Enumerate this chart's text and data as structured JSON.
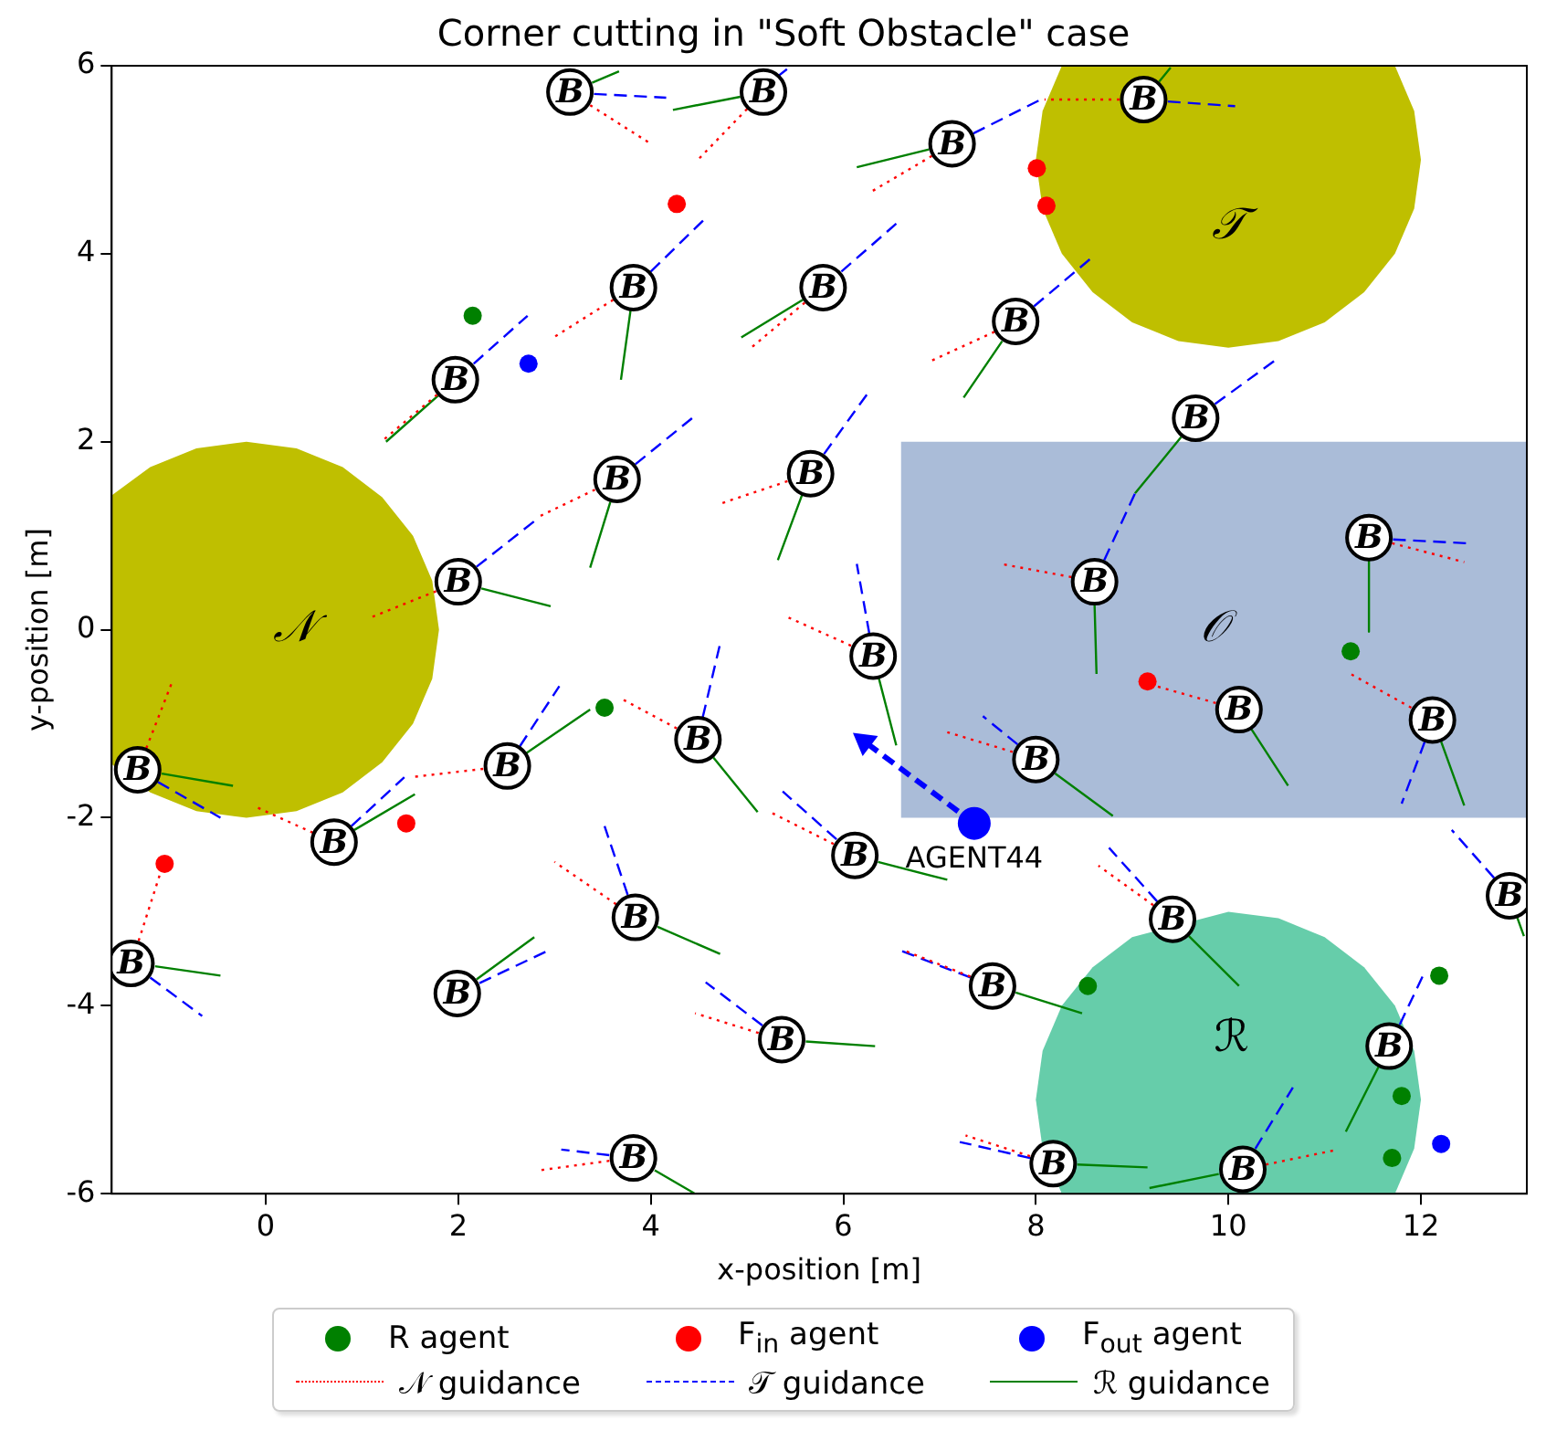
{
  "chart_data": {
    "type": "scatter",
    "title": "Corner cutting in \"Soft Obstacle\" case",
    "xlabel": "x-position [m]",
    "ylabel": "y-position [m]",
    "xlim": [
      -1.6,
      13.1
    ],
    "ylim": [
      -6,
      6
    ],
    "xticks": [
      0,
      2,
      4,
      6,
      8,
      10,
      12
    ],
    "yticks": [
      -6,
      -4,
      -2,
      0,
      2,
      4,
      6
    ],
    "grid": false,
    "legend": "bottom",
    "annotations": [
      {
        "text": "AGENT44",
        "x": 7.36,
        "y": -2.06
      }
    ],
    "series": [
      {
        "name": "𝒩",
        "type": "area",
        "color": "#bfbf00",
        "x": [
          1.8,
          1.73,
          1.53,
          1.21,
          0.8,
          0.32,
          -0.2,
          -0.72,
          -1.2,
          -1.6,
          -1.6,
          -1.2,
          -0.72,
          -0.2,
          0.32,
          0.8,
          1.21,
          1.53,
          1.73,
          1.8
        ],
        "values": [
          0,
          0.52,
          1,
          1.41,
          1.73,
          1.93,
          2,
          1.93,
          1.73,
          1.43,
          -1.43,
          -1.73,
          -1.93,
          -2,
          -1.93,
          -1.73,
          -1.41,
          -1,
          -0.52,
          0
        ]
      },
      {
        "name": "𝒯",
        "type": "area",
        "color": "#bfbf00",
        "x": [
          12,
          11.93,
          11.73,
          8.27,
          8.07,
          8,
          8.07,
          8.27,
          8.59,
          9,
          9.48,
          10,
          10.52,
          11,
          11.41,
          11.73,
          11.93,
          12
        ],
        "values": [
          5,
          5.52,
          6,
          6,
          5.52,
          5,
          4.48,
          4,
          3.59,
          3.27,
          3.07,
          3,
          3.07,
          3.27,
          3.59,
          4,
          4.48,
          5
        ]
      },
      {
        "name": "ℛ",
        "type": "area",
        "color": "#66cdaa",
        "x": [
          12,
          11.93,
          11.73,
          11.41,
          11,
          10.52,
          10,
          9,
          8.59,
          8.27,
          8.07,
          8,
          8.07,
          8.27,
          11.73,
          11.93,
          12
        ],
        "values": [
          -5,
          -4.48,
          -4,
          -3.59,
          -3.27,
          -3.07,
          -3,
          -3.27,
          -3.59,
          -4,
          -4.48,
          -5,
          -5.52,
          -6,
          -6,
          -5.52,
          -5
        ]
      },
      {
        "name": "𝒪",
        "type": "area",
        "color": "#aabcd8",
        "x": [
          6.6,
          13.1,
          13.1,
          6.6,
          6.6
        ],
        "values": [
          2,
          2,
          -2,
          -2,
          2
        ]
      },
      {
        "name": "R agent",
        "color": "#008000",
        "x": [
          2.15,
          3.52,
          11.27,
          8.54,
          12.19,
          11.8,
          11.7
        ],
        "values": [
          3.34,
          -0.83,
          -0.23,
          -3.79,
          -3.68,
          -4.96,
          -5.62
        ]
      },
      {
        "name": "F$_{in}$ agent",
        "color": "#ff0000",
        "x": [
          4.27,
          8.01,
          8.11,
          9.16,
          1.46,
          -1.05
        ],
        "values": [
          4.53,
          4.91,
          4.51,
          -0.55,
          -2.06,
          -2.49
        ]
      },
      {
        "name": "F$_{out}$ agent",
        "color": "#0000ff",
        "x": [
          2.73,
          12.21
        ],
        "values": [
          2.83,
          -5.47
        ]
      },
      {
        "name": "𝒩 guidance",
        "type": "line",
        "color": "#ff0000",
        "line_style": "dotted",
        "x": [
          3.37,
          4.0,
          null,
          5.0,
          4.49,
          null,
          6.92,
          6.29,
          null,
          8.87,
          8.09,
          null,
          3.61,
          2.96,
          null,
          5.6,
          5.02,
          null,
          7.57,
          6.89,
          null,
          1.78,
          1.2,
          null,
          3.42,
          2.81,
          null,
          5.42,
          4.72,
          null,
          11.7,
          12.45,
          null,
          1.77,
          1.09,
          null,
          8.37,
          7.64,
          null,
          6.08,
          5.43,
          null,
          9.87,
          9.18,
          null,
          11.9,
          11.27,
          null,
          -1.24,
          -0.97,
          null,
          2.26,
          1.5,
          null,
          4.27,
          3.67,
          null,
          7.76,
          7.08,
          null,
          0.49,
          -0.09,
          null,
          5.9,
          5.24,
          null,
          9.22,
          8.65,
          null,
          3.64,
          3.0,
          null,
          -1.32,
          -1.07,
          null,
          7.32,
          6.65,
          null,
          5.12,
          4.46,
          null,
          3.57,
          2.85,
          null,
          7.94,
          7.27,
          null,
          10.39,
          11.14
        ],
        "values": [
          5.58,
          5.17,
          null,
          5.54,
          5.0,
          null,
          5.04,
          4.66,
          null,
          5.64,
          5.64,
          null,
          3.51,
          3.09,
          null,
          3.48,
          2.98,
          null,
          3.17,
          2.85,
          null,
          2.5,
          2.0,
          null,
          1.49,
          1.19,
          null,
          1.58,
          1.34,
          null,
          0.92,
          0.72,
          null,
          0.41,
          0.13,
          null,
          0.56,
          0.7,
          null,
          -0.17,
          0.13,
          null,
          -0.78,
          -0.58,
          null,
          -0.83,
          -0.47,
          null,
          -1.26,
          -0.55,
          null,
          -1.48,
          -1.57,
          null,
          -1.05,
          -0.72,
          null,
          -1.3,
          -1.09,
          null,
          -2.16,
          -1.89,
          null,
          -2.28,
          -1.94,
          null,
          -2.93,
          -2.51,
          null,
          -2.92,
          -2.47,
          null,
          -3.31,
          -2.51,
          null,
          -3.69,
          -3.42,
          null,
          -4.29,
          -4.08,
          null,
          -5.65,
          -5.75,
          null,
          -5.6,
          -5.38,
          null,
          -5.69,
          -5.53
        ]
      },
      {
        "name": "𝒯 guidance",
        "type": "line",
        "color": "#0000ff",
        "line_style": "dashed",
        "x": [
          3.41,
          4.16,
          null,
          5.31,
          5.46,
          null,
          7.35,
          8.05,
          null,
          9.37,
          10.07,
          null,
          4.0,
          4.55,
          null,
          5.98,
          6.55,
          null,
          7.98,
          8.56,
          null,
          2.16,
          2.72,
          null,
          9.86,
          10.49,
          null,
          3.84,
          4.44,
          null,
          5.8,
          6.25,
          null,
          11.71,
          12.47,
          null,
          2.19,
          2.81,
          null,
          8.71,
          9.03,
          null,
          6.27,
          6.14,
          null,
          12.04,
          11.8,
          null,
          -1.12,
          -0.47,
          null,
          2.64,
          3.05,
          null,
          4.54,
          4.72,
          null,
          7.81,
          7.45,
          null,
          0.89,
          1.44,
          null,
          5.93,
          5.37,
          null,
          12.76,
          12.32,
          null,
          9.26,
          8.76,
          null,
          3.76,
          3.52,
          null,
          -1.2,
          -0.66,
          null,
          2.22,
          2.92,
          null,
          7.32,
          6.61,
          null,
          5.16,
          4.57,
          null,
          11.78,
          12.04,
          null,
          3.57,
          3.07,
          null,
          7.94,
          7.21,
          null,
          10.28,
          10.67
        ],
        "values": [
          5.7,
          5.66,
          null,
          5.88,
          6.0,
          null,
          5.28,
          5.64,
          null,
          5.62,
          5.57,
          null,
          3.81,
          4.36,
          null,
          3.81,
          4.32,
          null,
          3.44,
          3.94,
          null,
          2.83,
          3.34,
          null,
          2.4,
          2.87,
          null,
          1.76,
          2.26,
          null,
          1.87,
          2.51,
          null,
          0.96,
          0.92,
          null,
          0.67,
          1.17,
          null,
          0.74,
          1.45,
          null,
          -0.04,
          0.7,
          null,
          -1.19,
          -1.85,
          null,
          -1.62,
          -2.0,
          null,
          -1.24,
          -0.6,
          null,
          -0.93,
          -0.15,
          null,
          -1.22,
          -0.92,
          null,
          -2.09,
          -1.57,
          null,
          -2.23,
          -1.72,
          null,
          -2.64,
          -2.13,
          null,
          -2.89,
          -2.32,
          null,
          -2.82,
          -2.09,
          null,
          -3.7,
          -4.11,
          null,
          -3.76,
          -3.42,
          null,
          -3.7,
          -3.42,
          null,
          -4.21,
          -3.75,
          null,
          -4.2,
          -3.64,
          null,
          -5.59,
          -5.53,
          null,
          -5.62,
          -5.45,
          null,
          -5.52,
          -4.87
        ]
      },
      {
        "name": "ℛ guidance",
        "type": "line",
        "color": "#008000",
        "line_style": "solid",
        "x": [
          3.39,
          3.67,
          null,
          4.93,
          4.23,
          null,
          6.89,
          6.14,
          null,
          9.28,
          9.4,
          null,
          3.79,
          3.69,
          null,
          5.58,
          4.94,
          null,
          7.65,
          7.25,
          null,
          1.79,
          1.25,
          null,
          9.51,
          9.03,
          null,
          3.58,
          3.37,
          null,
          5.57,
          5.32,
          null,
          11.46,
          11.46,
          null,
          2.24,
          2.96,
          null,
          8.61,
          8.63,
          null,
          6.37,
          6.55,
          null,
          10.24,
          10.62,
          null,
          12.21,
          12.45,
          null,
          -1.08,
          -0.34,
          null,
          2.71,
          3.37,
          null,
          4.65,
          5.11,
          null,
          8.2,
          8.8,
          null,
          0.92,
          1.55,
          null,
          6.36,
          7.08,
          null,
          13.0,
          13.07,
          null,
          9.59,
          10.11,
          null,
          4.07,
          4.72,
          null,
          -1.15,
          -0.47,
          null,
          2.19,
          2.79,
          null,
          7.79,
          8.48,
          null,
          5.61,
          6.33,
          null,
          11.56,
          11.22,
          null,
          4.04,
          4.46,
          null,
          8.43,
          9.16,
          null,
          9.9,
          9.18
        ],
        "values": [
          5.82,
          5.94,
          null,
          5.67,
          5.53,
          null,
          5.11,
          4.92,
          null,
          5.83,
          5.98,
          null,
          3.4,
          2.66,
          null,
          3.51,
          3.11,
          null,
          3.07,
          2.47,
          null,
          2.49,
          2.0,
          null,
          2.05,
          1.45,
          null,
          1.36,
          0.66,
          null,
          1.43,
          0.74,
          null,
          0.73,
          -0.02,
          null,
          0.44,
          0.25,
          null,
          0.26,
          -0.47,
          null,
          -0.52,
          -1.23,
          null,
          -1.06,
          -1.66,
          null,
          -1.19,
          -1.87,
          null,
          -1.53,
          -1.66,
          null,
          -1.31,
          -0.85,
          null,
          -1.36,
          -1.94,
          null,
          -1.53,
          -1.98,
          null,
          -2.13,
          -1.75,
          null,
          -2.47,
          -2.66,
          null,
          -3.06,
          -3.26,
          null,
          -3.26,
          -3.79,
          null,
          -3.16,
          -3.45,
          null,
          -3.58,
          -3.68,
          null,
          -3.72,
          -3.27,
          null,
          -3.86,
          -4.08,
          null,
          -4.38,
          -4.43,
          null,
          -4.65,
          -5.34,
          null,
          -5.75,
          -6.0,
          null,
          -5.69,
          -5.72,
          null,
          -5.79,
          -5.94
        ]
      },
      {
        "type": "line",
        "color": "#0000ff",
        "line_style": "dashed",
        "marker": "triangle",
        "x": [
          7.36,
          6.22
        ],
        "values": [
          -2.06,
          -1.19
        ]
      },
      {
        "color": "#0000ff",
        "x": [
          7.36
        ],
        "values": [
          -2.06
        ]
      },
      {
        "color": "#000000",
        "value_labels": [
          "B",
          "B",
          "B",
          "B",
          "B",
          "B",
          "B",
          "B",
          "B",
          "B",
          "B",
          "B",
          "B",
          "B",
          "B",
          "B",
          "B",
          "B",
          "B",
          "B",
          "B",
          "B",
          "B",
          "B",
          "B",
          "B",
          "B",
          "B",
          "B",
          "B",
          "B",
          "B",
          "B",
          "B"
        ],
        "x": [
          3.16,
          5.17,
          7.13,
          9.12,
          3.82,
          5.79,
          7.79,
          1.97,
          9.66,
          3.65,
          5.66,
          11.46,
          2.0,
          8.61,
          6.31,
          10.11,
          12.12,
          -1.33,
          2.51,
          4.49,
          8.0,
          0.71,
          6.12,
          12.92,
          9.42,
          3.84,
          -1.4,
          1.99,
          7.55,
          5.36,
          11.67,
          3.82,
          8.18,
          10.15
        ],
        "values": [
          5.72,
          5.72,
          5.17,
          5.64,
          3.64,
          3.64,
          3.28,
          2.66,
          2.25,
          1.6,
          1.66,
          0.98,
          0.51,
          0.51,
          -0.28,
          -0.85,
          -0.96,
          -1.49,
          -1.45,
          -1.17,
          -1.38,
          -2.26,
          -2.4,
          -2.83,
          -3.08,
          -3.06,
          -3.55,
          -3.87,
          -3.79,
          -4.36,
          -4.43,
          -5.62,
          -5.68,
          -5.74
        ]
      }
    ]
  }
}
